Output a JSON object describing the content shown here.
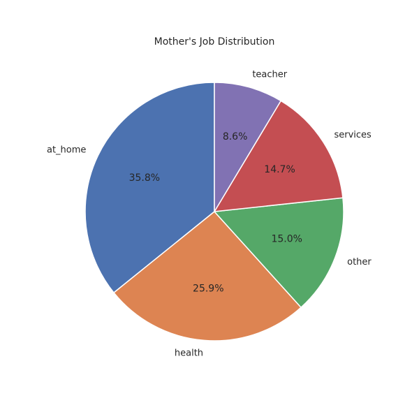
{
  "chart_data": {
    "type": "pie",
    "title": "Mother's Job Distribution",
    "slices": [
      {
        "label": "at_home",
        "value": 35.8,
        "pct_label": "35.8%",
        "color": "#4c72b0"
      },
      {
        "label": "health",
        "value": 25.9,
        "pct_label": "25.9%",
        "color": "#dd8452"
      },
      {
        "label": "other",
        "value": 15.0,
        "pct_label": "15.0%",
        "color": "#55a868"
      },
      {
        "label": "services",
        "value": 14.7,
        "pct_label": "14.7%",
        "color": "#c44e52"
      },
      {
        "label": "teacher",
        "value": 8.6,
        "pct_label": "8.6%",
        "color": "#8172b3"
      }
    ],
    "start_angle_deg": 90,
    "direction": "counterclockwise"
  }
}
